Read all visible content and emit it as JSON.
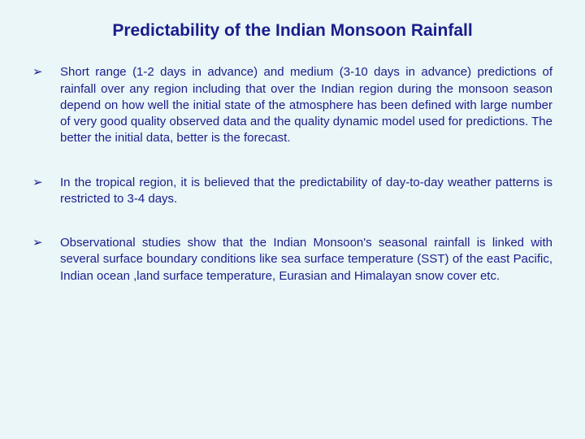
{
  "slide": {
    "background_color": "#eaf6f7",
    "text_color": "#1a1d8c",
    "title_fontsize": 21,
    "body_fontsize": 15,
    "font_family": "Verdana",
    "title": "Predictability of the Indian Monsoon Rainfall",
    "bullet_marker": "➢",
    "bullets": [
      "Short range (1-2 days in advance) and medium (3-10 days in advance) predictions of rainfall over any region  including that over the Indian region during the monsoon season depend on how well the initial state of the atmosphere has been defined with large number of very good quality observed data and the quality dynamic model used for predictions. The better the initial data, better is the forecast.",
      "In the tropical region, it is believed  that the predictability of day-to-day weather patterns is restricted to 3-4 days.",
      "Observational studies show that the Indian Monsoon's seasonal rainfall is linked with several surface boundary conditions like sea surface temperature (SST) of the east Pacific,  Indian ocean ,land surface temperature, Eurasian and Himalayan snow cover etc."
    ]
  }
}
